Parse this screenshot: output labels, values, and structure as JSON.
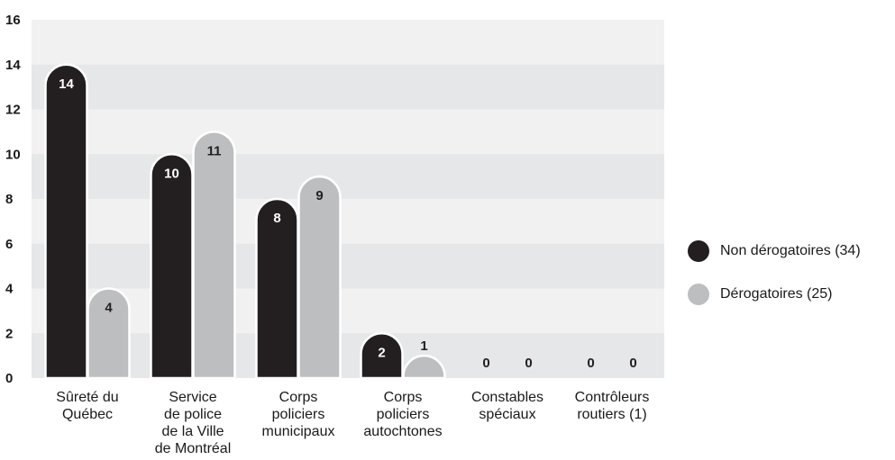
{
  "chart_data": {
    "type": "bar",
    "categories": [
      [
        "Sûreté du",
        "Québec"
      ],
      [
        "Service",
        "de police",
        "de la Ville",
        "de Montréal"
      ],
      [
        "Corps",
        "policiers",
        "municipaux"
      ],
      [
        "Corps",
        "policiers",
        "autochtones"
      ],
      [
        "Constables",
        "spéciaux"
      ],
      [
        "Contrôleurs",
        "routiers (1)"
      ]
    ],
    "series": [
      {
        "name": "Non dérogatoires (34)",
        "values": [
          14,
          10,
          8,
          2,
          0,
          0
        ],
        "color": "#231f20",
        "label_color": "#ffffff"
      },
      {
        "name": "Dérogatoires (25)",
        "values": [
          4,
          11,
          9,
          1,
          0,
          0
        ],
        "color": "#bcbec0",
        "label_color": "#231f20"
      }
    ],
    "yticks": [
      "0",
      "2",
      "4",
      "6",
      "8",
      "10",
      "12",
      "14",
      "16"
    ],
    "ylim": [
      0,
      16
    ],
    "grid": "alternating bands",
    "band_color": "#e6e7e8",
    "plot_background": "#f1f1f2",
    "legend_position": "right",
    "title": "",
    "xlabel": "",
    "ylabel": ""
  }
}
